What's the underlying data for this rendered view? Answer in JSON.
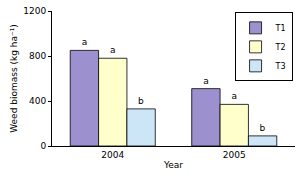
{
  "chart_data": {
    "type": "bar",
    "x_label": "Year",
    "y_label": "Weed biomass (kg ha⁻¹)",
    "categories": [
      "2004",
      "2005"
    ],
    "series": [
      {
        "name": "T1",
        "color": "#9d90cf",
        "values": [
          850,
          510
        ],
        "letters": [
          "a",
          "a"
        ]
      },
      {
        "name": "T2",
        "color": "#ffffcc",
        "values": [
          780,
          370
        ],
        "letters": [
          "a",
          "a"
        ]
      },
      {
        "name": "T3",
        "color": "#cde6f7",
        "values": [
          330,
          90
        ],
        "letters": [
          "b",
          "b"
        ]
      }
    ],
    "ylim": [
      0,
      1200
    ],
    "yticks": [
      0,
      400,
      800,
      1200
    ],
    "grid": false,
    "legend": "upper right"
  }
}
